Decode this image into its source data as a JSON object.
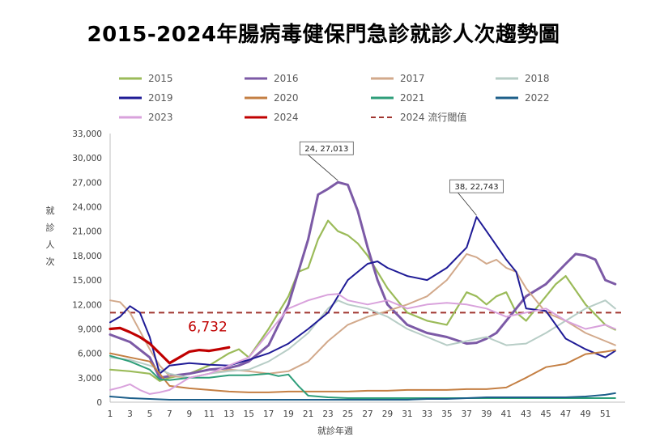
{
  "title": "2015-2024年腸病毒健保門急診就診人次趨勢圖",
  "chart_data": {
    "type": "line",
    "title": "2015-2024年腸病毒健保門急診就診人次趨勢圖",
    "xlabel": "就診年週",
    "ylabel": "就診人次",
    "xlim": [
      1,
      53
    ],
    "ylim": [
      0,
      33000
    ],
    "x_ticks": [
      1,
      3,
      5,
      7,
      9,
      11,
      13,
      15,
      17,
      19,
      21,
      23,
      25,
      27,
      29,
      31,
      33,
      35,
      37,
      39,
      41,
      43,
      45,
      47,
      49,
      51
    ],
    "y_ticks": [
      0,
      3000,
      6000,
      9000,
      12000,
      15000,
      18000,
      21000,
      24000,
      27000,
      30000,
      33000
    ],
    "y_tick_labels": [
      "0",
      "3,000",
      "6,000",
      "9,000",
      "12,000",
      "15,000",
      "18,000",
      "21,000",
      "24,000",
      "27,000",
      "30,000",
      "33,000"
    ],
    "legend_position": "top",
    "grid": false,
    "series": [
      {
        "name": "2015",
        "color": "#9bbb59",
        "width": 2.2,
        "x": [
          1,
          3,
          5,
          6,
          7,
          9,
          11,
          13,
          14,
          15,
          17,
          19,
          20,
          21,
          22,
          23,
          24,
          25,
          26,
          27,
          29,
          31,
          33,
          35,
          37,
          38,
          39,
          40,
          41,
          42,
          43,
          45,
          46,
          47,
          49,
          51,
          52
        ],
        "y": [
          4000,
          3800,
          3500,
          2600,
          3000,
          3500,
          4500,
          6000,
          6500,
          5500,
          9000,
          13000,
          16000,
          16500,
          20000,
          22300,
          21000,
          20500,
          19500,
          18000,
          14000,
          11000,
          10000,
          9500,
          13500,
          13000,
          12000,
          13000,
          13500,
          11000,
          10000,
          13000,
          14500,
          15500,
          12000,
          9500,
          8900
        ]
      },
      {
        "name": "2016",
        "color": "#7c5aa6",
        "width": 3.0,
        "x": [
          1,
          3,
          5,
          6,
          7,
          9,
          11,
          13,
          14,
          15,
          17,
          19,
          21,
          22,
          23,
          24,
          25,
          26,
          27,
          28,
          29,
          31,
          33,
          35,
          37,
          38,
          39,
          40,
          41,
          43,
          45,
          47,
          48,
          49,
          50,
          51,
          52
        ],
        "y": [
          8300,
          7400,
          5500,
          3000,
          3200,
          3500,
          4000,
          4200,
          4500,
          5000,
          7000,
          12000,
          20000,
          25500,
          26200,
          27013,
          26700,
          23500,
          19000,
          15000,
          12000,
          9500,
          8500,
          8000,
          7200,
          7300,
          7800,
          8500,
          10000,
          13000,
          14500,
          17000,
          18200,
          18000,
          17500,
          15000,
          14500
        ]
      },
      {
        "name": "2017",
        "color": "#d2a98b",
        "width": 2.0,
        "x": [
          1,
          2,
          3,
          5,
          6,
          7,
          9,
          11,
          13,
          15,
          17,
          19,
          21,
          23,
          25,
          27,
          29,
          31,
          33,
          35,
          37,
          38,
          39,
          40,
          41,
          42,
          43,
          45,
          47,
          49,
          51,
          52
        ],
        "y": [
          12500,
          12300,
          11000,
          6500,
          4500,
          3200,
          3000,
          3500,
          4000,
          3800,
          3500,
          3800,
          5000,
          7500,
          9500,
          10500,
          11200,
          12000,
          13000,
          15000,
          18200,
          17800,
          17000,
          17500,
          16500,
          16000,
          14000,
          11000,
          10000,
          8500,
          7500,
          7000
        ]
      },
      {
        "name": "2018",
        "color": "#b7cdc6",
        "width": 2.0,
        "x": [
          1,
          3,
          5,
          7,
          9,
          11,
          13,
          15,
          17,
          19,
          21,
          23,
          24,
          25,
          27,
          29,
          31,
          33,
          35,
          37,
          39,
          41,
          43,
          45,
          47,
          49,
          51,
          52
        ],
        "y": [
          5500,
          5200,
          4500,
          3500,
          3000,
          3500,
          3800,
          4000,
          5000,
          6500,
          8500,
          11500,
          12500,
          12000,
          11500,
          10500,
          9000,
          8000,
          7000,
          7500,
          8000,
          7000,
          7200,
          8500,
          10000,
          11500,
          12500,
          11500
        ]
      },
      {
        "name": "2019",
        "color": "#1f1b96",
        "width": 2.0,
        "x": [
          1,
          2,
          3,
          4,
          5,
          6,
          7,
          9,
          11,
          13,
          15,
          17,
          19,
          21,
          23,
          25,
          27,
          28,
          29,
          31,
          33,
          35,
          37,
          38,
          39,
          41,
          42,
          43,
          45,
          47,
          49,
          51,
          52
        ],
        "y": [
          9800,
          10500,
          11800,
          11000,
          8000,
          3500,
          4500,
          4800,
          4600,
          4500,
          5200,
          6000,
          7200,
          9000,
          11000,
          15000,
          17000,
          17300,
          16500,
          15500,
          15000,
          16500,
          19000,
          22743,
          21000,
          17500,
          16000,
          11500,
          11200,
          7800,
          6500,
          5500,
          6300
        ]
      },
      {
        "name": "2020",
        "color": "#c47f43",
        "width": 2.0,
        "x": [
          1,
          3,
          5,
          7,
          9,
          11,
          13,
          15,
          17,
          19,
          21,
          23,
          25,
          27,
          29,
          31,
          33,
          35,
          37,
          39,
          41,
          43,
          45,
          47,
          49,
          51,
          52
        ],
        "y": [
          6000,
          5500,
          5000,
          2000,
          1700,
          1500,
          1300,
          1200,
          1200,
          1300,
          1300,
          1300,
          1300,
          1400,
          1400,
          1500,
          1500,
          1500,
          1600,
          1600,
          1800,
          3000,
          4300,
          4700,
          5900,
          6200,
          6400
        ]
      },
      {
        "name": "2021",
        "color": "#2e9e7a",
        "width": 2.0,
        "x": [
          1,
          3,
          5,
          6,
          7,
          9,
          11,
          13,
          15,
          17,
          18,
          19,
          20,
          21,
          23,
          25,
          27,
          29,
          31,
          33,
          35,
          37,
          39,
          41,
          43,
          45,
          47,
          49,
          51,
          52
        ],
        "y": [
          5700,
          5000,
          4000,
          2800,
          2700,
          3000,
          3000,
          3300,
          3300,
          3500,
          3200,
          3400,
          2000,
          800,
          600,
          500,
          500,
          500,
          500,
          500,
          500,
          500,
          500,
          500,
          500,
          500,
          500,
          500,
          500,
          500
        ]
      },
      {
        "name": "2022",
        "color": "#1d5f8a",
        "width": 2.0,
        "x": [
          1,
          3,
          5,
          7,
          9,
          11,
          13,
          15,
          17,
          19,
          21,
          23,
          25,
          27,
          29,
          31,
          33,
          35,
          37,
          39,
          41,
          43,
          45,
          47,
          49,
          51,
          52
        ],
        "y": [
          700,
          500,
          400,
          300,
          300,
          300,
          300,
          300,
          300,
          300,
          300,
          300,
          300,
          300,
          300,
          300,
          400,
          400,
          500,
          600,
          600,
          600,
          600,
          600,
          700,
          900,
          1100
        ]
      },
      {
        "name": "2023",
        "color": "#d9a2dc",
        "width": 2.0,
        "x": [
          1,
          2,
          3,
          4,
          5,
          6,
          7,
          9,
          11,
          13,
          15,
          17,
          19,
          21,
          23,
          24,
          25,
          27,
          29,
          31,
          33,
          35,
          37,
          39,
          41,
          43,
          45,
          47,
          49,
          51,
          52
        ],
        "y": [
          1500,
          1800,
          2200,
          1500,
          1000,
          1200,
          1500,
          3000,
          3500,
          4500,
          5500,
          8500,
          11500,
          12500,
          13200,
          13300,
          12500,
          12000,
          12500,
          11500,
          12000,
          12200,
          12000,
          11500,
          10500,
          11000,
          11500,
          10000,
          9000,
          9500,
          9000
        ]
      },
      {
        "name": "2024",
        "color": "#c00000",
        "width": 3.2,
        "x": [
          1,
          2,
          3,
          4,
          5,
          6,
          7,
          8,
          9,
          10,
          11,
          12,
          13
        ],
        "y": [
          9000,
          9100,
          8600,
          8000,
          7200,
          6000,
          4800,
          5500,
          6200,
          6400,
          6300,
          6500,
          6732
        ]
      }
    ],
    "threshold": {
      "name": "2024 流行閾值",
      "value": 11000,
      "color": "#a0352f"
    },
    "annotations": [
      {
        "text": "24, 27,013",
        "x": 24,
        "y": 27013
      },
      {
        "text": "38, 22,743",
        "x": 38,
        "y": 22743
      }
    ],
    "highlight_label": {
      "text": "6,732",
      "x": 13,
      "y": 6732,
      "color": "#c00000"
    }
  }
}
